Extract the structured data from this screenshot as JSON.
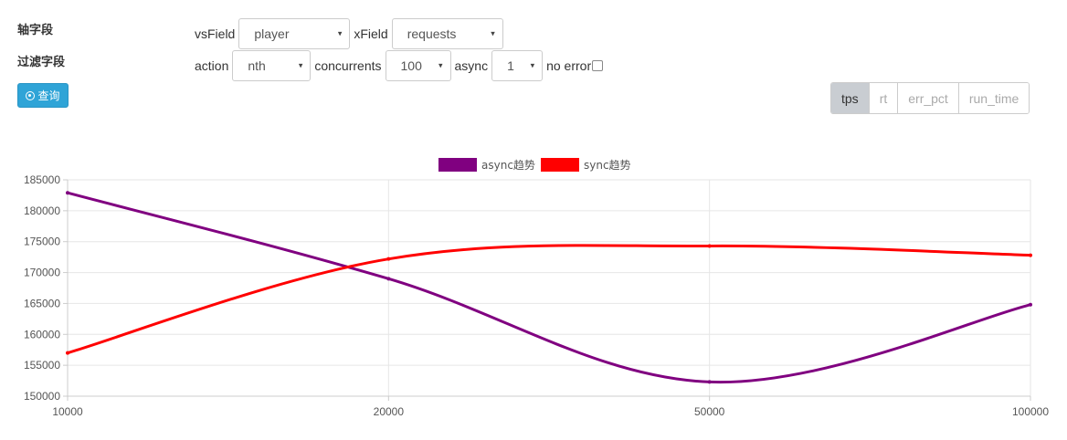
{
  "filters": {
    "axis_label": "轴字段",
    "filter_label": "过滤字段",
    "vsField": {
      "label": "vsField",
      "value": "player"
    },
    "xField": {
      "label": "xField",
      "value": "requests"
    },
    "action": {
      "label": "action",
      "value": "nth"
    },
    "concurrents": {
      "label": "concurrents",
      "value": "100"
    },
    "async": {
      "label": "async",
      "value": "1"
    },
    "no_error": {
      "label": "no error",
      "checked": false
    },
    "caret_icon": "▾"
  },
  "query_button": {
    "label": "查询",
    "icon": "play-circle-icon"
  },
  "metric_tabs": [
    {
      "label": "tps",
      "active": true
    },
    {
      "label": "rt",
      "active": false
    },
    {
      "label": "err_pct",
      "active": false
    },
    {
      "label": "run_time",
      "active": false
    }
  ],
  "chart_data": {
    "type": "line",
    "categories": [
      "10000",
      "20000",
      "50000",
      "100000"
    ],
    "series": [
      {
        "name": "async趋势",
        "color": "#800080",
        "values": [
          182900,
          169000,
          152300,
          164800
        ]
      },
      {
        "name": "sync趋势",
        "color": "#ff0000",
        "values": [
          157000,
          172200,
          174300,
          172800
        ]
      }
    ],
    "ylim": [
      150000,
      185000
    ],
    "yticks": [
      150000,
      155000,
      160000,
      165000,
      170000,
      175000,
      180000,
      185000
    ],
    "grid": true,
    "legend_position": "top-center"
  }
}
